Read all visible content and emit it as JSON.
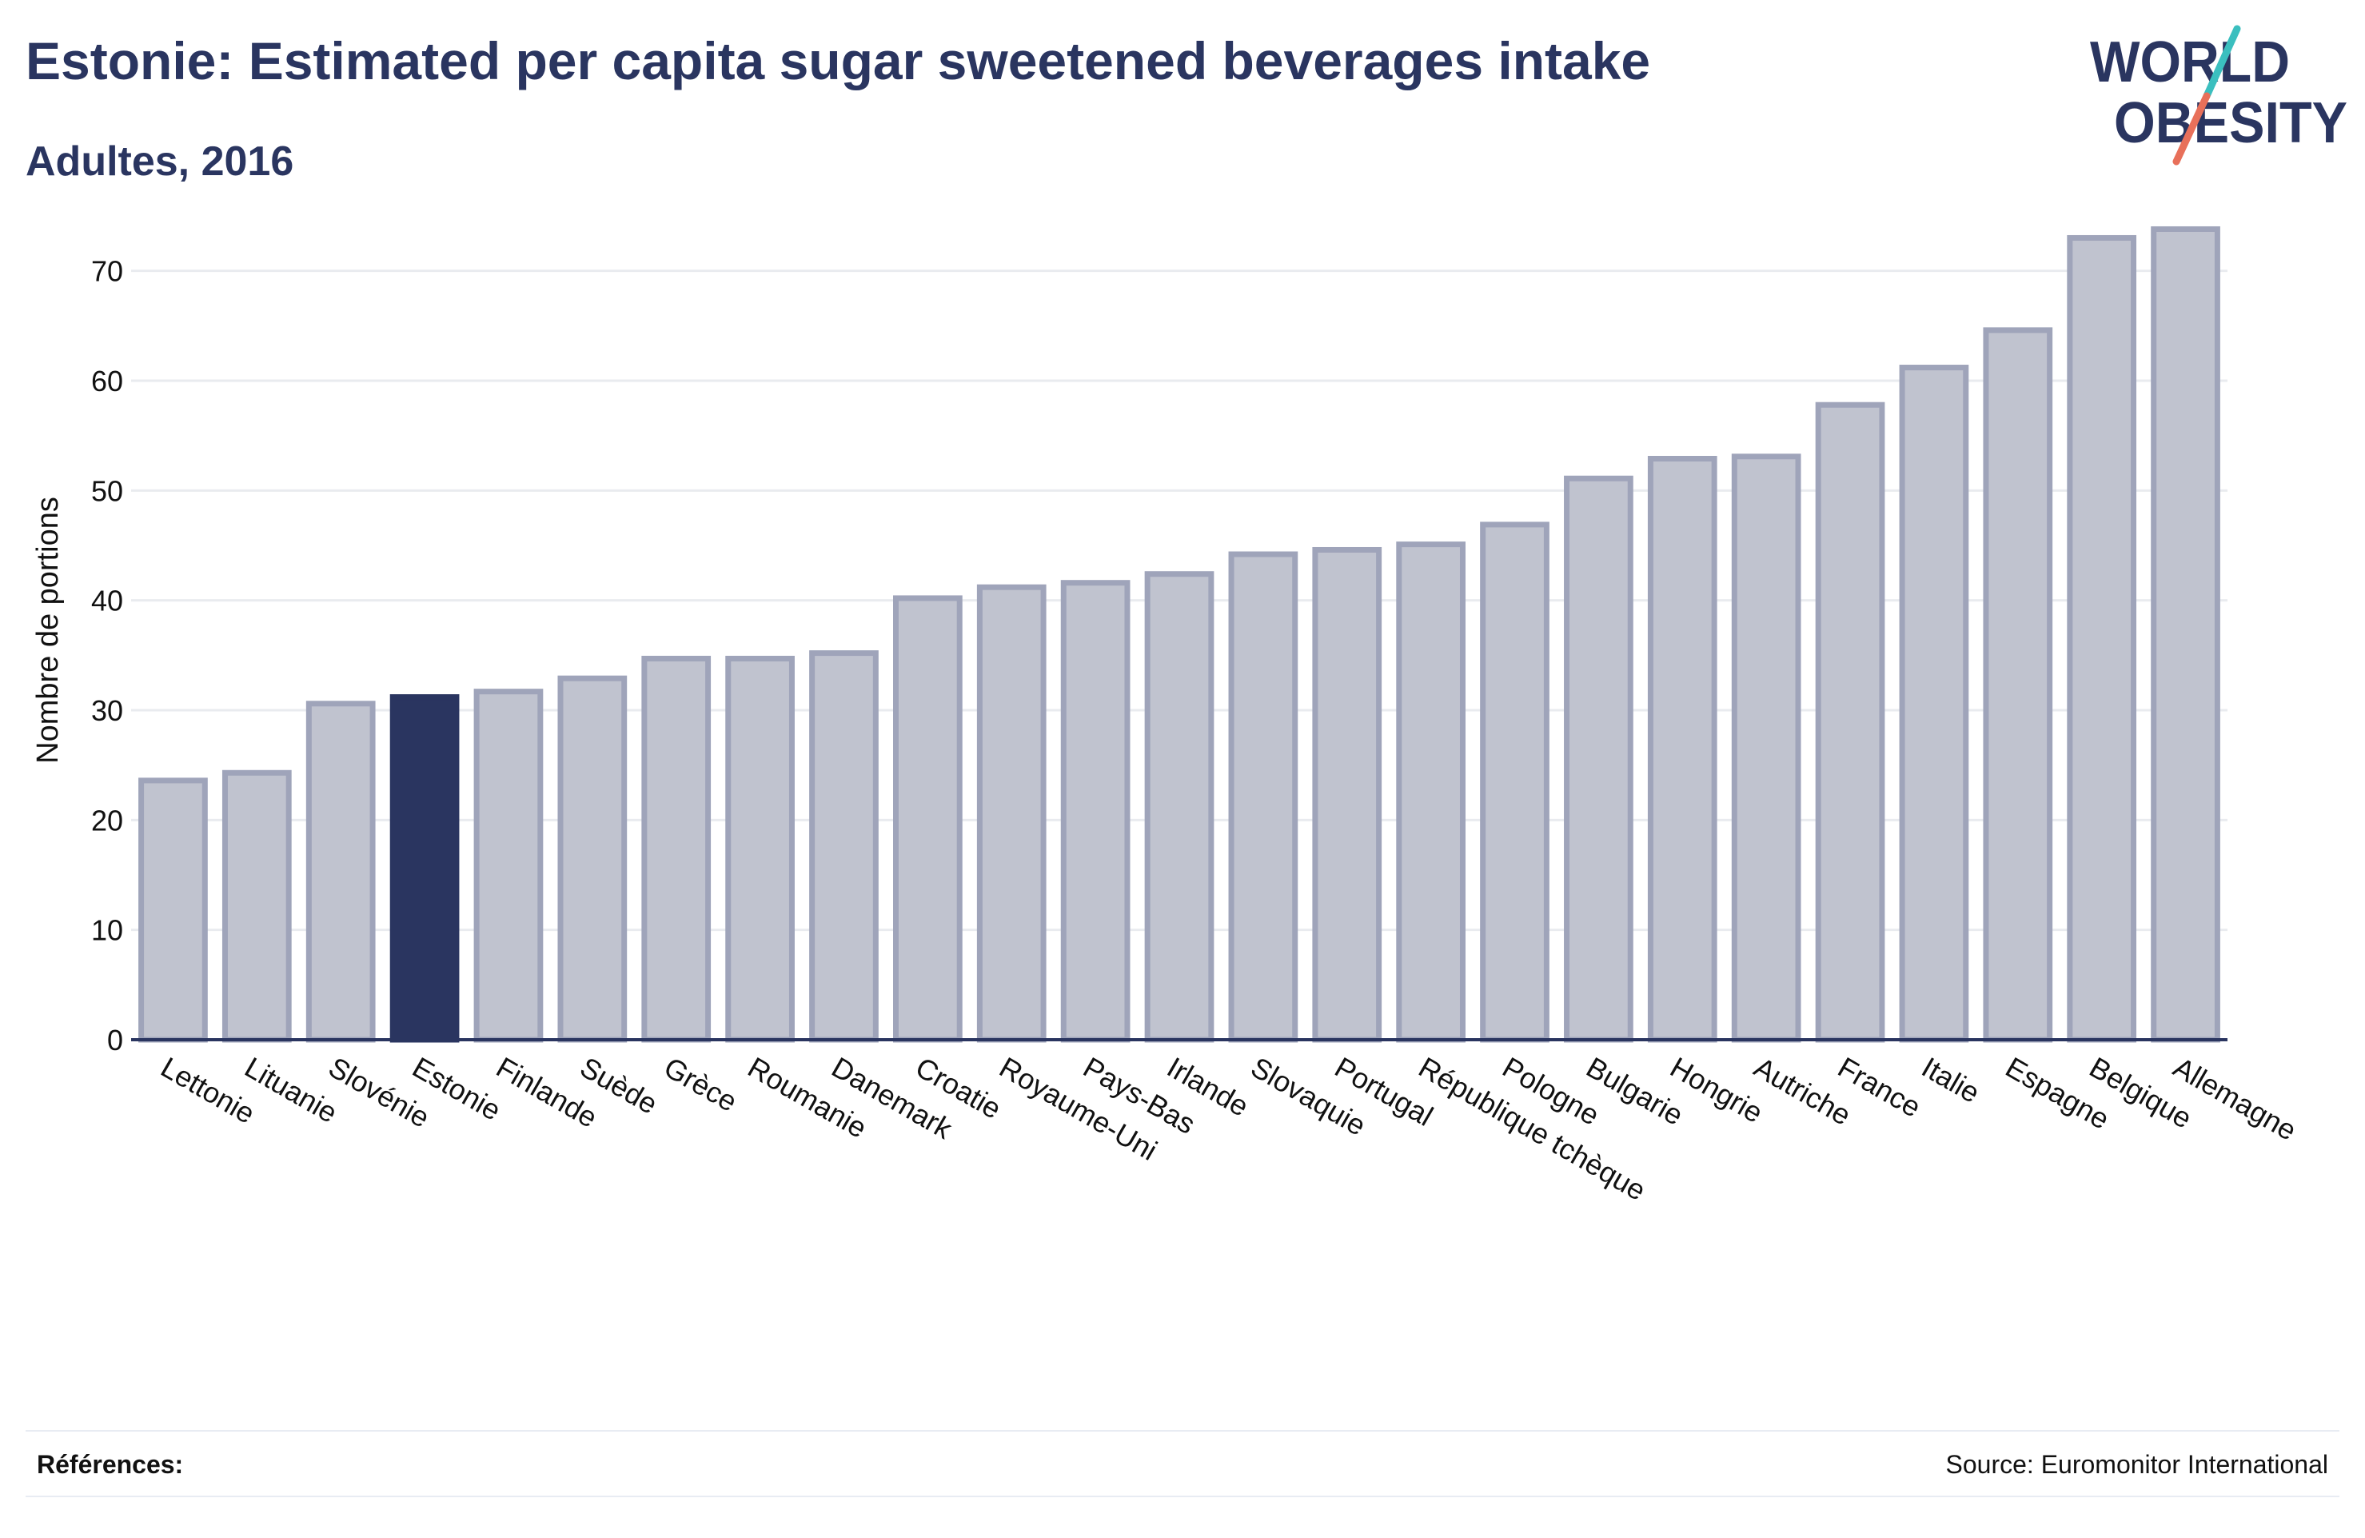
{
  "header": {
    "title": "Estonie: Estimated per capita sugar sweetened beverages intake",
    "subtitle": "Adultes, 2016"
  },
  "logo": {
    "line1": "WORLD",
    "line2": "OBESITY",
    "text_color": "#2a3560",
    "slash_teal": "#3bbfbf",
    "slash_coral": "#e8705a"
  },
  "chart_data": {
    "type": "bar",
    "ylabel": "Nombre de portions",
    "xlabel": "",
    "ylim": [
      0,
      75
    ],
    "yticks": [
      0,
      10,
      20,
      30,
      40,
      50,
      60,
      70
    ],
    "grid": true,
    "highlight": "Estonie",
    "colors": {
      "bar": "#c0c3cf",
      "bar_border": "#9fa4ba",
      "highlight": "#2a3560",
      "grid": "#e9ebef",
      "axis": "#2a3560"
    },
    "categories": [
      "Lettonie",
      "Lituanie",
      "Slovénie",
      "Estonie",
      "Finlande",
      "Suède",
      "Grèce",
      "Roumanie",
      "Danemark",
      "Croatie",
      "Royaume-Uni",
      "Pays-Bas",
      "Irlande",
      "Slovaquie",
      "Portugal",
      "République tchèque",
      "Pologne",
      "Bulgarie",
      "Hongrie",
      "Autriche",
      "France",
      "Italie",
      "Espagne",
      "Belgique",
      "Allemagne"
    ],
    "values": [
      23.6,
      24.3,
      30.6,
      31.2,
      31.7,
      32.9,
      34.7,
      34.7,
      35.2,
      40.2,
      41.2,
      41.6,
      42.4,
      44.2,
      44.6,
      45.1,
      46.9,
      51.1,
      52.9,
      53.1,
      57.8,
      61.2,
      64.6,
      73.0,
      73.8
    ]
  },
  "footer": {
    "references_label": "Références:",
    "source": "Source: Euromonitor International"
  }
}
